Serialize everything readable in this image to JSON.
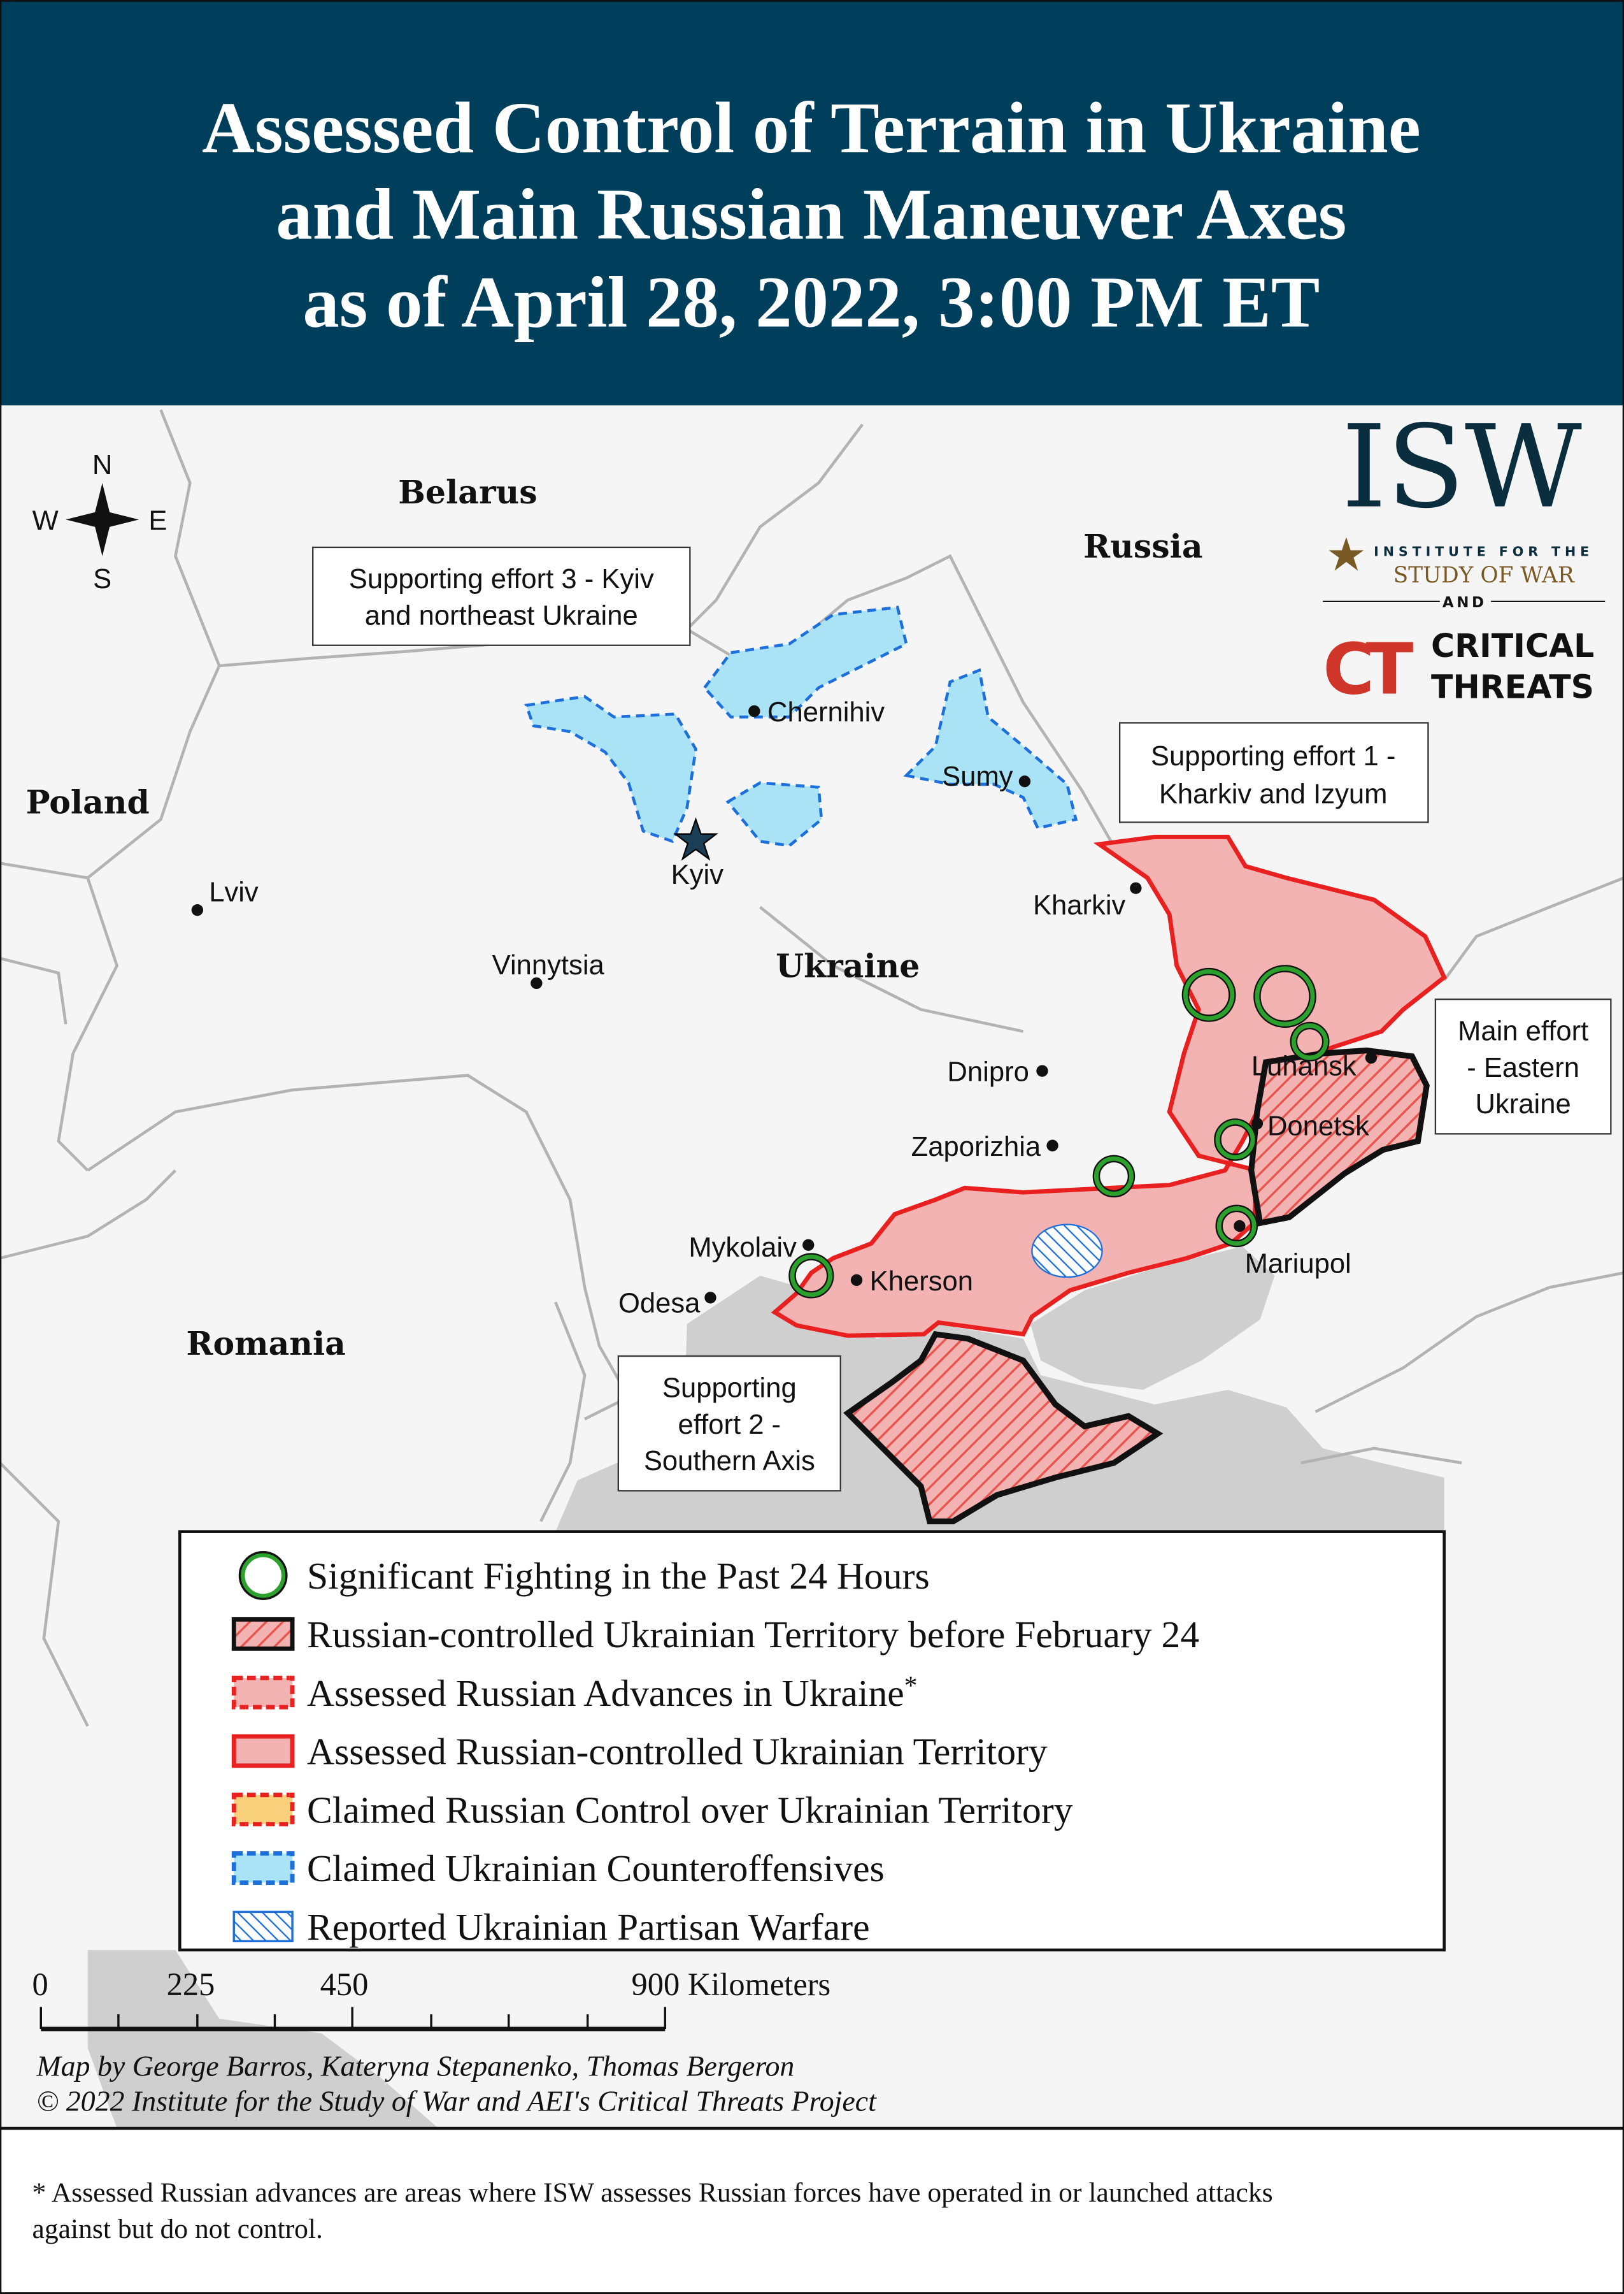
{
  "header": {
    "title_lines": [
      "Assessed Control of Terrain in Ukraine",
      "and Main Russian Maneuver Axes",
      "as of April 28, 2022, 3:00 PM ET"
    ]
  },
  "compass": {
    "n": "N",
    "s": "S",
    "e": "E",
    "w": "W"
  },
  "countries": [
    "Belarus",
    "Russia",
    "Poland",
    "Ukraine",
    "Romania"
  ],
  "cities": [
    "Chernihiv",
    "Sumy",
    "Kyiv",
    "Lviv",
    "Vinnytsia",
    "Kharkiv",
    "Dnipro",
    "Luhansk",
    "Donetsk",
    "Zaporizhia",
    "Mykolaiv",
    "Kherson",
    "Odesa",
    "Mariupol"
  ],
  "callouts": {
    "se3": [
      "Supporting effort 3 - Kyiv",
      "and northeast Ukraine"
    ],
    "se1": [
      "Supporting effort 1 -",
      "Kharkiv and Izyum"
    ],
    "main": [
      "Main effort",
      "- Eastern",
      "Ukraine"
    ],
    "se2": [
      "Supporting",
      "effort 2 -",
      "Southern Axis"
    ]
  },
  "logo": {
    "isw": "ISW",
    "isw_line1": "INSTITUTE FOR THE",
    "isw_line2": "STUDY OF WAR",
    "and": "AND",
    "ct_mark": "CT",
    "ct_line1": "CRITICAL",
    "ct_line2": "THREATS"
  },
  "legend": {
    "items": [
      {
        "label": "Significant Fighting in the Past 24 Hours",
        "icon": "green-circle"
      },
      {
        "label": "Russian-controlled Ukrainian Territory before February 24",
        "icon": "hatched-black-border"
      },
      {
        "label": "Assessed Russian Advances in Ukraine",
        "sup": "*",
        "icon": "red-dashed-pink"
      },
      {
        "label": "Assessed Russian-controlled Ukrainian Territory",
        "icon": "red-solid-pink"
      },
      {
        "label": "Claimed Russian Control over Ukrainian Territory",
        "icon": "red-dashed-yellow"
      },
      {
        "label": "Claimed Ukrainian Counteroffensives",
        "icon": "blue-dashed-lightblue"
      },
      {
        "label": "Reported Ukrainian Partisan Warfare",
        "icon": "blue-hatch"
      }
    ]
  },
  "scale": {
    "labels": [
      "0",
      "225",
      "450",
      "900 Kilometers"
    ]
  },
  "credits": [
    "Map by George Barros, Kateryna Stepanenko, Thomas Bergeron",
    "© 2022 Institute for the Study of War and AEI's Critical Threats Project"
  ],
  "footnote": [
    "* Assessed Russian advances are areas where ISW assesses Russian forces have operated in or launched attacks",
    "against but do not control."
  ],
  "colors": {
    "header": "#003f5c",
    "russian_control": "#f4b3b3",
    "russian_border": "#e8201f",
    "ukrainian_counter": "#a9e3f5",
    "ukrainian_border": "#1d6fdc",
    "fighting": "#2ca02c",
    "isw_blue": "#0b2e3f",
    "isw_gold": "#7a5a24",
    "ct_red": "#d0352a"
  }
}
